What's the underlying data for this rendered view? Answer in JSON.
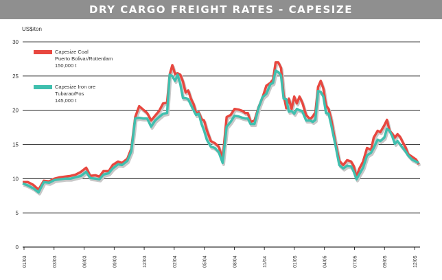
{
  "title": "DRY CARGO FREIGHT RATES - CAPESIZE",
  "colors": {
    "title_bg": "#8f8f8f",
    "coal": "#e8473f",
    "iron_ore": "#3fbfae",
    "shadow": "#c8c8c8"
  },
  "chart_data": {
    "type": "line",
    "ylabel": "US$/ton",
    "ylim": [
      0,
      30
    ],
    "yticks": [
      0,
      5,
      10,
      15,
      20,
      25,
      30
    ],
    "grid": "horizontal",
    "legend_position": "top-left",
    "x_tick_labels": [
      "01/03",
      "03/03",
      "06/03",
      "09/03",
      "12/03",
      "02/04",
      "05/04",
      "08/04",
      "11/04",
      "01/05",
      "04/05",
      "07/05",
      "09/05",
      "12/05"
    ],
    "legend": [
      {
        "series": 0,
        "lines": [
          "Capesize Coal",
          "Puerto Bolivar/Rotterdam",
          "150,000 t"
        ]
      },
      {
        "series": 1,
        "lines": [
          "Capesize Iron ore",
          "Tubarao/Fos",
          "145,000 t"
        ]
      }
    ],
    "series": [
      {
        "name": "Capesize Coal Puerto Bolivar/Rotterdam 150,000 t",
        "color": "#e8473f",
        "points": [
          [
            0,
            9.5
          ],
          [
            4,
            9.5
          ],
          [
            8,
            9.1
          ],
          [
            12,
            8.4
          ],
          [
            16,
            9.7
          ],
          [
            20,
            9.6
          ],
          [
            24,
            10.0
          ],
          [
            28,
            10.2
          ],
          [
            32,
            10.3
          ],
          [
            36,
            10.4
          ],
          [
            40,
            10.6
          ],
          [
            44,
            11.0
          ],
          [
            48,
            11.6
          ],
          [
            51,
            10.4
          ],
          [
            55,
            10.5
          ],
          [
            58,
            10.3
          ],
          [
            61,
            11.1
          ],
          [
            65,
            11.1
          ],
          [
            68,
            12.0
          ],
          [
            72,
            12.5
          ],
          [
            75,
            12.3
          ],
          [
            79,
            12.9
          ],
          [
            82,
            14.4
          ],
          [
            85,
            19.0
          ],
          [
            88,
            20.6
          ],
          [
            91,
            20.1
          ],
          [
            94,
            19.6
          ],
          [
            97,
            18.5
          ],
          [
            100,
            19.2
          ],
          [
            103,
            19.9
          ],
          [
            106,
            21.0
          ],
          [
            109,
            21.1
          ],
          [
            111,
            25.2
          ],
          [
            113,
            26.6
          ],
          [
            115,
            25.3
          ],
          [
            117,
            25.4
          ],
          [
            119,
            25.2
          ],
          [
            121,
            24.2
          ],
          [
            123,
            22.6
          ],
          [
            125,
            22.9
          ],
          [
            127,
            21.7
          ],
          [
            129,
            20.9
          ],
          [
            131,
            19.6
          ],
          [
            133,
            19.7
          ],
          [
            135,
            18.7
          ],
          [
            137,
            18.5
          ],
          [
            139,
            17.1
          ],
          [
            142,
            15.5
          ],
          [
            145,
            15.2
          ],
          [
            148,
            14.7
          ],
          [
            151,
            12.9
          ],
          [
            154,
            19.0
          ],
          [
            157,
            19.3
          ],
          [
            160,
            20.2
          ],
          [
            163,
            20.1
          ],
          [
            166,
            19.9
          ],
          [
            168,
            19.6
          ],
          [
            170,
            19.6
          ],
          [
            172,
            18.3
          ],
          [
            175,
            18.5
          ],
          [
            178,
            20.4
          ],
          [
            181,
            21.8
          ],
          [
            184,
            23.6
          ],
          [
            187,
            24.0
          ],
          [
            189,
            24.5
          ],
          [
            191,
            27.0
          ],
          [
            193,
            27.0
          ],
          [
            195,
            26.2
          ],
          [
            197,
            22.3
          ],
          [
            199,
            20.3
          ],
          [
            201,
            21.7
          ],
          [
            203,
            20.2
          ],
          [
            205,
            22.0
          ],
          [
            207,
            21.0
          ],
          [
            209,
            22.0
          ],
          [
            211,
            21.2
          ],
          [
            214,
            19.3
          ],
          [
            217,
            18.7
          ],
          [
            219,
            19.1
          ],
          [
            221,
            19.7
          ],
          [
            223,
            23.4
          ],
          [
            225,
            24.3
          ],
          [
            227,
            23.2
          ],
          [
            229,
            20.7
          ],
          [
            231,
            20.2
          ],
          [
            233,
            18.6
          ],
          [
            236,
            15.4
          ],
          [
            239,
            12.6
          ],
          [
            242,
            12.0
          ],
          [
            245,
            12.7
          ],
          [
            248,
            12.5
          ],
          [
            250,
            11.8
          ],
          [
            252,
            10.2
          ],
          [
            254,
            11.4
          ],
          [
            257,
            12.5
          ],
          [
            260,
            14.5
          ],
          [
            263,
            14.2
          ],
          [
            265,
            16.0
          ],
          [
            268,
            17.0
          ],
          [
            270,
            16.8
          ],
          [
            273,
            17.8
          ],
          [
            275,
            18.6
          ],
          [
            277,
            17.0
          ],
          [
            279,
            16.6
          ],
          [
            281,
            16.0
          ],
          [
            283,
            16.5
          ],
          [
            285,
            16.1
          ],
          [
            287,
            15.3
          ],
          [
            289,
            14.6
          ],
          [
            291,
            13.6
          ],
          [
            294,
            13.2
          ],
          [
            297,
            12.8
          ],
          [
            299,
            12.1
          ]
        ]
      },
      {
        "name": "Capesize Iron ore Tubarao/Fos 145,000 t",
        "color": "#3fbfae",
        "points": [
          [
            0,
            9.3
          ],
          [
            4,
            9.0
          ],
          [
            8,
            8.6
          ],
          [
            12,
            8.0
          ],
          [
            16,
            9.5
          ],
          [
            20,
            9.4
          ],
          [
            24,
            9.8
          ],
          [
            28,
            9.9
          ],
          [
            32,
            10.0
          ],
          [
            36,
            10.0
          ],
          [
            40,
            10.2
          ],
          [
            44,
            10.4
          ],
          [
            48,
            11.0
          ],
          [
            51,
            10.1
          ],
          [
            55,
            10.0
          ],
          [
            58,
            9.9
          ],
          [
            61,
            10.6
          ],
          [
            65,
            10.8
          ],
          [
            68,
            11.5
          ],
          [
            72,
            12.1
          ],
          [
            75,
            12.0
          ],
          [
            79,
            12.6
          ],
          [
            82,
            14.0
          ],
          [
            85,
            18.8
          ],
          [
            88,
            18.9
          ],
          [
            91,
            18.8
          ],
          [
            94,
            18.8
          ],
          [
            97,
            17.6
          ],
          [
            100,
            18.5
          ],
          [
            103,
            19.0
          ],
          [
            106,
            19.5
          ],
          [
            109,
            19.6
          ],
          [
            111,
            25.2
          ],
          [
            113,
            25.0
          ],
          [
            115,
            24.3
          ],
          [
            117,
            25.2
          ],
          [
            119,
            23.8
          ],
          [
            121,
            21.8
          ],
          [
            123,
            21.8
          ],
          [
            125,
            21.6
          ],
          [
            127,
            20.8
          ],
          [
            129,
            20.0
          ],
          [
            131,
            19.3
          ],
          [
            133,
            19.5
          ],
          [
            135,
            18.0
          ],
          [
            137,
            17.0
          ],
          [
            139,
            15.7
          ],
          [
            142,
            14.7
          ],
          [
            145,
            14.5
          ],
          [
            148,
            13.9
          ],
          [
            151,
            12.3
          ],
          [
            154,
            17.6
          ],
          [
            157,
            18.3
          ],
          [
            160,
            19.2
          ],
          [
            163,
            19.1
          ],
          [
            166,
            18.9
          ],
          [
            168,
            18.8
          ],
          [
            170,
            18.8
          ],
          [
            172,
            18.0
          ],
          [
            175,
            18.0
          ],
          [
            178,
            20.3
          ],
          [
            181,
            21.9
          ],
          [
            184,
            22.4
          ],
          [
            187,
            23.8
          ],
          [
            189,
            24.0
          ],
          [
            191,
            25.8
          ],
          [
            193,
            25.6
          ],
          [
            195,
            25.1
          ],
          [
            197,
            21.7
          ],
          [
            199,
            21.6
          ],
          [
            201,
            19.8
          ],
          [
            203,
            19.9
          ],
          [
            205,
            19.5
          ],
          [
            207,
            20.2
          ],
          [
            209,
            20.0
          ],
          [
            211,
            19.9
          ],
          [
            214,
            18.5
          ],
          [
            217,
            18.5
          ],
          [
            219,
            18.3
          ],
          [
            221,
            18.6
          ],
          [
            223,
            22.8
          ],
          [
            225,
            22.7
          ],
          [
            227,
            22.0
          ],
          [
            229,
            19.6
          ],
          [
            231,
            19.5
          ],
          [
            233,
            17.8
          ],
          [
            236,
            15.0
          ],
          [
            239,
            12.0
          ],
          [
            242,
            11.5
          ],
          [
            245,
            11.9
          ],
          [
            248,
            11.8
          ],
          [
            250,
            11.0
          ],
          [
            252,
            9.9
          ],
          [
            254,
            10.6
          ],
          [
            257,
            11.6
          ],
          [
            260,
            13.4
          ],
          [
            263,
            13.8
          ],
          [
            265,
            14.5
          ],
          [
            268,
            15.7
          ],
          [
            270,
            15.5
          ],
          [
            273,
            16.0
          ],
          [
            275,
            17.3
          ],
          [
            277,
            17.0
          ],
          [
            279,
            16.2
          ],
          [
            281,
            15.1
          ],
          [
            283,
            15.5
          ],
          [
            285,
            15.0
          ],
          [
            287,
            14.5
          ],
          [
            289,
            14.0
          ],
          [
            291,
            13.4
          ],
          [
            294,
            12.8
          ],
          [
            297,
            12.5
          ],
          [
            299,
            12.3
          ]
        ]
      }
    ]
  }
}
